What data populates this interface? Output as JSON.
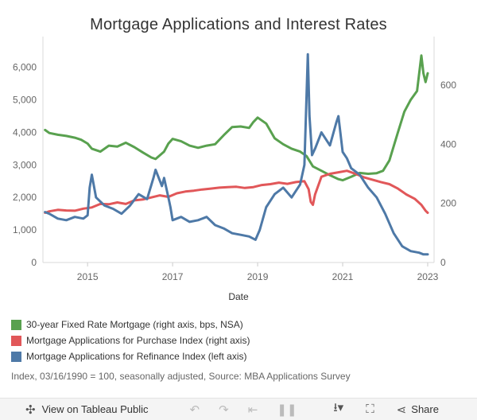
{
  "title": "Mortgage Applications and Interest Rates",
  "footnote": "Index, 03/16/1990 = 100, seasonally adjusted, Source: MBA Applications Survey",
  "legend": [
    {
      "label": "30-year Fixed Rate Mortgage (right axis, bps, NSA)",
      "color": "#59a14f"
    },
    {
      "label": "Mortgage Applications for Purchase Index (right axis)",
      "color": "#e15759"
    },
    {
      "label": "Mortgage Applications for Refinance Index (left axis)",
      "color": "#4e79a7"
    }
  ],
  "toolbar": {
    "view_label": "View on Tableau Public",
    "share_label": "Share",
    "icons": [
      "tableau-logo-icon",
      "undo-icon",
      "redo-icon",
      "revert-icon",
      "pause-icon",
      "download-icon",
      "fullscreen-icon",
      "share-icon"
    ]
  },
  "chart_data": {
    "type": "line",
    "xlabel": "Date",
    "x_ticks": [
      "2015",
      "2017",
      "2019",
      "2021",
      "2023"
    ],
    "x_range": [
      2013.95,
      2023.15
    ],
    "y_left": {
      "ticks": [
        "0",
        "1,000",
        "2,000",
        "3,000",
        "4,000",
        "5,000",
        "6,000"
      ],
      "range": [
        0,
        6700
      ]
    },
    "y_right": {
      "ticks": [
        "0",
        "200",
        "400",
        "600"
      ],
      "range": [
        0,
        737
      ]
    },
    "grid": false,
    "legend_position": "bottom",
    "series": [
      {
        "name": "30-year Fixed Rate Mortgage (right axis, bps, NSA)",
        "axis": "right",
        "color": "#59a14f",
        "x": [
          2014.0,
          2014.1,
          2014.3,
          2014.5,
          2014.7,
          2014.85,
          2015.0,
          2015.1,
          2015.3,
          2015.5,
          2015.7,
          2015.9,
          2016.1,
          2016.3,
          2016.5,
          2016.6,
          2016.8,
          2016.9,
          2017.0,
          2017.2,
          2017.4,
          2017.6,
          2017.8,
          2018.0,
          2018.2,
          2018.4,
          2018.6,
          2018.8,
          2018.9,
          2019.0,
          2019.2,
          2019.4,
          2019.6,
          2019.8,
          2020.0,
          2020.15,
          2020.3,
          2020.5,
          2020.7,
          2020.9,
          2021.0,
          2021.2,
          2021.4,
          2021.6,
          2021.8,
          2021.95,
          2022.1,
          2022.3,
          2022.45,
          2022.6,
          2022.75,
          2022.85,
          2022.9,
          2022.95,
          2023.0
        ],
        "y": [
          448,
          438,
          432,
          428,
          422,
          415,
          402,
          385,
          375,
          395,
          392,
          405,
          390,
          372,
          355,
          350,
          375,
          402,
          418,
          410,
          395,
          388,
          395,
          400,
          430,
          458,
          460,
          455,
          475,
          490,
          470,
          420,
          400,
          385,
          375,
          360,
          325,
          310,
          295,
          282,
          278,
          290,
          303,
          300,
          302,
          310,
          345,
          440,
          510,
          550,
          580,
          700,
          640,
          610,
          640
        ]
      },
      {
        "name": "Mortgage Applications for Purchase Index (right axis)",
        "axis": "right",
        "color": "#e15759",
        "x": [
          2014.0,
          2014.1,
          2014.3,
          2014.5,
          2014.7,
          2014.9,
          2015.1,
          2015.3,
          2015.5,
          2015.7,
          2015.9,
          2016.1,
          2016.3,
          2016.5,
          2016.7,
          2016.9,
          2017.1,
          2017.3,
          2017.5,
          2017.7,
          2017.9,
          2018.1,
          2018.3,
          2018.5,
          2018.7,
          2018.9,
          2019.1,
          2019.3,
          2019.5,
          2019.7,
          2019.9,
          2020.1,
          2020.2,
          2020.25,
          2020.3,
          2020.35,
          2020.5,
          2020.7,
          2020.9,
          2021.1,
          2021.3,
          2021.5,
          2021.7,
          2021.9,
          2022.1,
          2022.3,
          2022.5,
          2022.7,
          2022.85,
          2022.95,
          2023.0
        ],
        "y": [
          168,
          173,
          178,
          176,
          175,
          182,
          186,
          198,
          197,
          203,
          198,
          210,
          213,
          220,
          227,
          222,
          234,
          240,
          243,
          247,
          250,
          253,
          255,
          256,
          252,
          255,
          262,
          265,
          270,
          266,
          272,
          275,
          248,
          205,
          195,
          230,
          290,
          300,
          305,
          310,
          300,
          288,
          280,
          272,
          265,
          250,
          230,
          215,
          195,
          175,
          168
        ]
      },
      {
        "name": "Mortgage Applications for Refinance Index (left axis)",
        "axis": "left",
        "color": "#4e79a7",
        "x": [
          2014.0,
          2014.1,
          2014.3,
          2014.5,
          2014.7,
          2014.9,
          2015.0,
          2015.05,
          2015.1,
          2015.2,
          2015.4,
          2015.6,
          2015.8,
          2016.0,
          2016.2,
          2016.4,
          2016.55,
          2016.6,
          2016.75,
          2016.8,
          2016.9,
          2016.95,
          2017.0,
          2017.2,
          2017.4,
          2017.6,
          2017.8,
          2018.0,
          2018.2,
          2018.4,
          2018.6,
          2018.8,
          2018.95,
          2019.05,
          2019.2,
          2019.4,
          2019.6,
          2019.8,
          2020.0,
          2020.1,
          2020.18,
          2020.22,
          2020.28,
          2020.35,
          2020.5,
          2020.7,
          2020.85,
          2020.9,
          2021.0,
          2021.1,
          2021.2,
          2021.4,
          2021.6,
          2021.8,
          2022.0,
          2022.2,
          2022.4,
          2022.6,
          2022.8,
          2022.9,
          2023.0
        ],
        "y": [
          1550,
          1500,
          1350,
          1300,
          1400,
          1350,
          1450,
          2300,
          2700,
          2000,
          1750,
          1650,
          1500,
          1750,
          2100,
          1950,
          2600,
          2850,
          2350,
          2600,
          2000,
          1700,
          1300,
          1400,
          1250,
          1300,
          1400,
          1150,
          1050,
          900,
          850,
          800,
          700,
          1000,
          1700,
          2100,
          2300,
          2000,
          2400,
          3000,
          6400,
          4500,
          3300,
          3500,
          4000,
          3600,
          4300,
          4500,
          3400,
          3200,
          2900,
          2700,
          2300,
          2000,
          1500,
          900,
          500,
          350,
          300,
          250,
          250
        ]
      }
    ]
  }
}
